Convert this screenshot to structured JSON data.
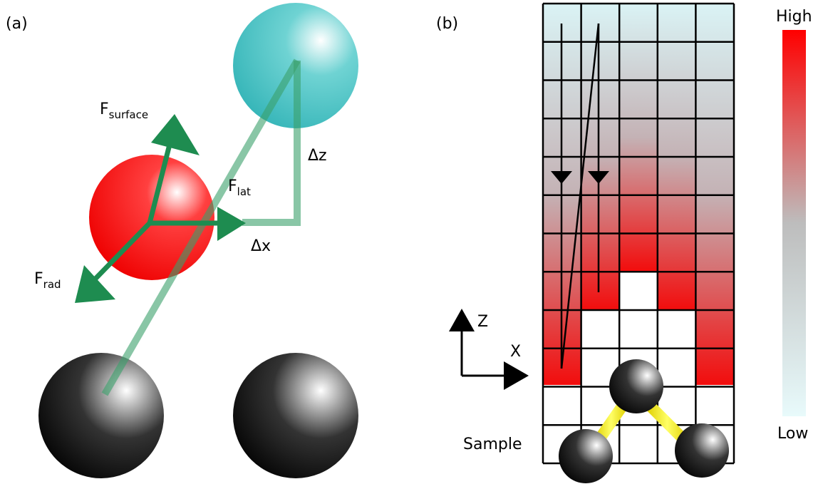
{
  "panel_a": {
    "label": "(a)",
    "forces": [
      {
        "symbol": "F",
        "subscript": "surface"
      },
      {
        "symbol": "F",
        "subscript": "lat"
      },
      {
        "symbol": "F",
        "subscript": "rad"
      }
    ],
    "delta_z": "Δz",
    "delta_x": "Δx"
  },
  "panel_b": {
    "label": "(b)",
    "axis_z": "Z",
    "axis_x": "X",
    "sample": "Sample",
    "colorbar": {
      "high": "High",
      "low": "Low"
    }
  }
}
